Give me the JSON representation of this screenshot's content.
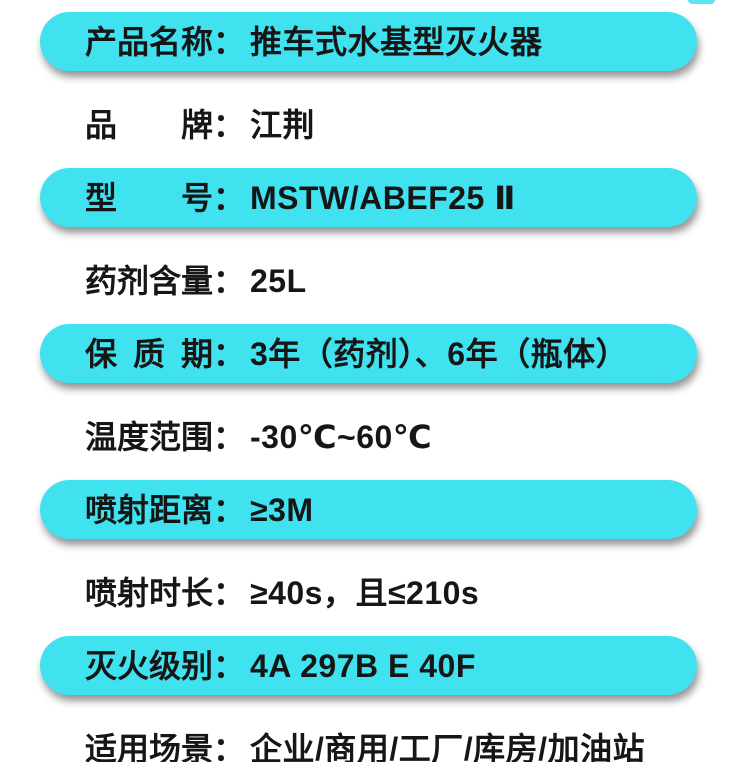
{
  "page": {
    "type": "product-specification-sheet",
    "background": "#ffffff"
  },
  "colors": {
    "pill": "#41e2f0",
    "text": "#161616",
    "shadow": "rgba(0,0,0,0.42)"
  },
  "separator": "：",
  "spec_rows": [
    {
      "label": "产品名称",
      "value": "推车式水基型灭火器",
      "highlight": true
    },
    {
      "label": "品牌",
      "value": "江荆",
      "highlight": false
    },
    {
      "label": "型号",
      "value": "MSTW/ABEF25 Ⅱ",
      "highlight": true
    },
    {
      "label": "药剂含量",
      "value": "25L",
      "highlight": false
    },
    {
      "label": "保质期",
      "value": "3年（药剂）、6年（瓶体）",
      "highlight": true
    },
    {
      "label": "温度范围",
      "value": "-30℃~60℃",
      "highlight": false
    },
    {
      "label": "喷射距离",
      "value": "≥3M",
      "highlight": true
    },
    {
      "label": "喷射时长",
      "value": "≥40s，且≤210s",
      "highlight": false
    },
    {
      "label": "灭火级别",
      "value": "4A 297B E 40F",
      "highlight": true
    },
    {
      "label": "适用场景",
      "value": "企业/商用/工厂/库房/加油站",
      "highlight": false
    }
  ]
}
